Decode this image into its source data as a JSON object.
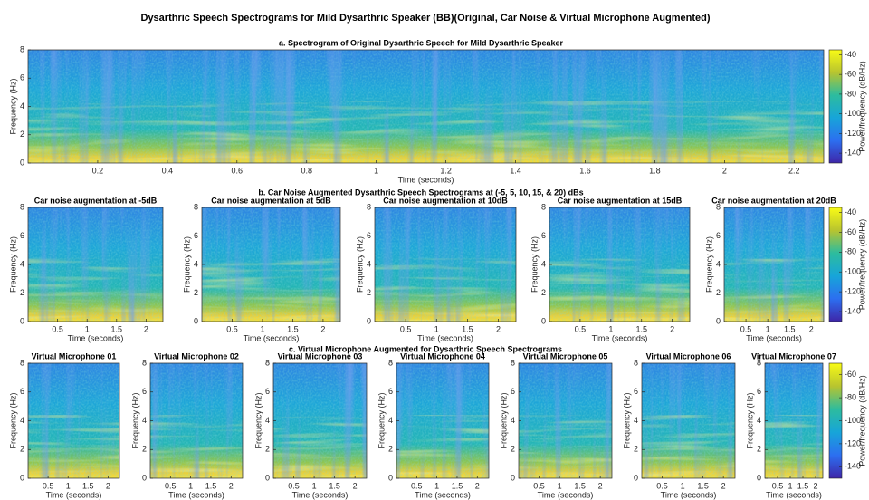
{
  "title": "Dysarthric Speech Spectrograms for Mild Dysarthric Speaker (BB)(Original, Car Noise & Virtual Microphone Augmented)",
  "section_titles": [
    "a. Spectrogram of Original Dysarthric Speech for Mild Dysarthric Speaker",
    "b. Car Noise Augmented Dysarthric Speech Spectrograms at (-5, 5, 10, 15, & 20) dBs",
    "c. Virtual Microphone Augmented for Dysarthric Speech Spectrograms"
  ],
  "chart_data": [
    {
      "type": "spectrogram",
      "xlabel": "Time (seconds)",
      "ylabel": "Frequency (Hz)",
      "xlim": [
        0,
        2.285
      ],
      "xticks": [
        0.2,
        0.4,
        0.6,
        0.8,
        1,
        1.2,
        1.4,
        1.6,
        1.8,
        2,
        2.2
      ],
      "ylim": [
        0,
        8
      ],
      "yticks": [
        0,
        2,
        4,
        6,
        8
      ],
      "colorbar": {
        "label": "Power/frequency (dB/Hz)",
        "lim": [
          -150,
          -35
        ],
        "ticks": [
          -40,
          -60,
          -80,
          -100,
          -120,
          -140
        ]
      }
    },
    {
      "type": "spectrogram",
      "title": "Car noise augmentation at -5dB",
      "xlabel": "Time (seconds)",
      "ylabel": "Frequency (Hz)",
      "xlim": [
        0,
        2.285
      ],
      "xticks": [
        0.5,
        1,
        1.5,
        2
      ],
      "ylim": [
        0,
        8
      ],
      "yticks": [
        0,
        2,
        4,
        6,
        8
      ]
    },
    {
      "type": "spectrogram",
      "title": "Car noise augmentation at 5dB",
      "xlabel": "Time (seconds)",
      "ylabel": "Frequency (Hz)",
      "xlim": [
        0,
        2.285
      ],
      "xticks": [
        0.5,
        1,
        1.5,
        2
      ],
      "ylim": [
        0,
        8
      ],
      "yticks": [
        0,
        2,
        4,
        6,
        8
      ]
    },
    {
      "type": "spectrogram",
      "title": "Car noise augmentation at 10dB",
      "xlabel": "Time (seconds)",
      "ylabel": "Frequency (Hz)",
      "xlim": [
        0,
        2.285
      ],
      "xticks": [
        0.5,
        1,
        1.5,
        2
      ],
      "ylim": [
        0,
        8
      ],
      "yticks": [
        0,
        2,
        4,
        6,
        8
      ]
    },
    {
      "type": "spectrogram",
      "title": "Car noise augmentation at 15dB",
      "xlabel": "Time (seconds)",
      "ylabel": "Frequency (Hz)",
      "xlim": [
        0,
        2.285
      ],
      "xticks": [
        0.5,
        1,
        1.5,
        2
      ],
      "ylim": [
        0,
        8
      ],
      "yticks": [
        0,
        2,
        4,
        6,
        8
      ]
    },
    {
      "type": "spectrogram",
      "title": "Car noise augmentation at 20dB",
      "xlabel": "Time (seconds)",
      "ylabel": "Frequency (Hz)",
      "xlim": [
        0,
        2.285
      ],
      "xticks": [
        0.5,
        1,
        1.5,
        2
      ],
      "ylim": [
        0,
        8
      ],
      "yticks": [
        0,
        2,
        4,
        6,
        8
      ],
      "colorbar": {
        "label": "Power/frequency (dB/Hz)",
        "lim": [
          -150,
          -35
        ],
        "ticks": [
          -40,
          -60,
          -80,
          -100,
          -120,
          -140
        ]
      }
    },
    {
      "type": "spectrogram",
      "title": "Virtual Microphone 01",
      "xlabel": "Time (seconds)",
      "ylabel": "Frequency (Hz)",
      "xlim": [
        0,
        2.285
      ],
      "xticks": [
        0.5,
        1,
        1.5,
        2
      ],
      "ylim": [
        0,
        8
      ],
      "yticks": [
        0,
        2,
        4,
        6,
        8
      ]
    },
    {
      "type": "spectrogram",
      "title": "Virtual Microphone 02",
      "xlabel": "Time (seconds)",
      "ylabel": "Frequency (Hz)",
      "xlim": [
        0,
        2.285
      ],
      "xticks": [
        0.5,
        1,
        1.5,
        2
      ],
      "ylim": [
        0,
        8
      ],
      "yticks": [
        0,
        2,
        4,
        6,
        8
      ]
    },
    {
      "type": "spectrogram",
      "title": "Virtual Microphone 03",
      "xlabel": "Time (seconds)",
      "ylabel": "Frequency (Hz)",
      "xlim": [
        0,
        2.285
      ],
      "xticks": [
        0.5,
        1,
        1.5,
        2
      ],
      "ylim": [
        0,
        8
      ],
      "yticks": [
        0,
        2,
        4,
        6,
        8
      ]
    },
    {
      "type": "spectrogram",
      "title": "Virtual Microphone 04",
      "xlabel": "Time (seconds)",
      "ylabel": "Frequency (Hz)",
      "xlim": [
        0,
        2.285
      ],
      "xticks": [
        0.5,
        1,
        1.5,
        2
      ],
      "ylim": [
        0,
        8
      ],
      "yticks": [
        0,
        2,
        4,
        6,
        8
      ]
    },
    {
      "type": "spectrogram",
      "title": "Virtual Microphone 05",
      "xlabel": "Time (seconds)",
      "ylabel": "Frequency (Hz)",
      "xlim": [
        0,
        2.285
      ],
      "xticks": [
        0.5,
        1,
        1.5,
        2
      ],
      "ylim": [
        0,
        8
      ],
      "yticks": [
        0,
        2,
        4,
        6,
        8
      ]
    },
    {
      "type": "spectrogram",
      "title": "Virtual Microphone 06",
      "xlabel": "Time (seconds)",
      "ylabel": "Frequency (Hz)",
      "xlim": [
        0,
        2.285
      ],
      "xticks": [
        0.5,
        1,
        1.5,
        2
      ],
      "ylim": [
        0,
        8
      ],
      "yticks": [
        0,
        2,
        4,
        6,
        8
      ]
    },
    {
      "type": "spectrogram",
      "title": "Virtual Microphone 07",
      "xlabel": "Time (seconds)",
      "ylabel": "Frequency (Hz)",
      "xlim": [
        0,
        2.285
      ],
      "xticks": [
        0.5,
        1,
        1.5,
        2
      ],
      "ylim": [
        0,
        8
      ],
      "yticks": [
        0,
        2,
        4,
        6,
        8
      ],
      "colorbar": {
        "label": "Power/frequency (dB/Hz)",
        "lim": [
          -150,
          -50
        ],
        "ticks": [
          -60,
          -80,
          -100,
          -120,
          -140
        ]
      }
    }
  ]
}
